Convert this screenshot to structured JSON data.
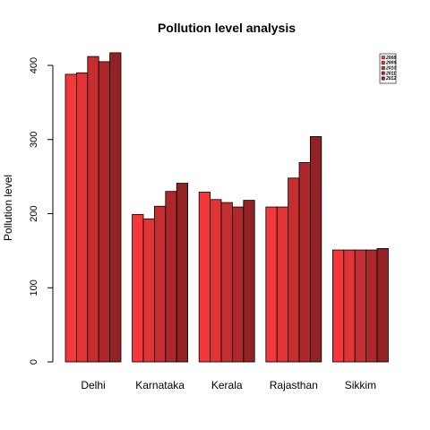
{
  "chart_data": {
    "type": "bar",
    "title": "Pollution level analysis",
    "xlabel": "",
    "ylabel": "Pollution level",
    "categories": [
      "Delhi",
      "Karnataka",
      "Kerala",
      "Rajasthan",
      "Sikkim"
    ],
    "series": [
      {
        "name": "2008",
        "color": "#f4373b",
        "values": [
          388,
          199,
          229,
          209,
          151
        ]
      },
      {
        "name": "2009",
        "color": "#e03437",
        "values": [
          390,
          193,
          219,
          209,
          151
        ]
      },
      {
        "name": "2010",
        "color": "#c52e30",
        "values": [
          412,
          210,
          215,
          248,
          151
        ]
      },
      {
        "name": "2011",
        "color": "#ac282a",
        "values": [
          405,
          230,
          209,
          269,
          151
        ]
      },
      {
        "name": "2012",
        "color": "#922224",
        "values": [
          417,
          241,
          218,
          304,
          153
        ]
      }
    ],
    "yticks": [
      "0",
      "100",
      "200",
      "300",
      "400"
    ],
    "ylim": [
      0,
      420
    ],
    "legend_position": "top-right",
    "grid": false
  }
}
